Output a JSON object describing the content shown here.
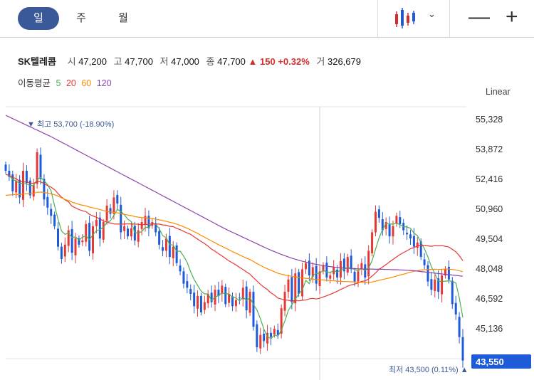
{
  "tabs": [
    "일",
    "주",
    "월"
  ],
  "window": {
    "minimize": "—",
    "add": "+"
  },
  "stock": {
    "name": "SK텔레콤",
    "open_label": "시",
    "open": "47,200",
    "high_label": "고",
    "high": "47,700",
    "low_label": "저",
    "low": "47,000",
    "close_label": "종",
    "close": "47,700",
    "change": "▲ 150",
    "change_pct": "+0.32%",
    "volume_label": "거",
    "volume": "326,679"
  },
  "ma_legend": {
    "label": "이동평균",
    "items": [
      "5",
      "20",
      "60",
      "120"
    ],
    "colors": [
      "#4caf50",
      "#e53935",
      "#fb8c00",
      "#8e44ad"
    ]
  },
  "scale_mode": "Linear",
  "chart_data": {
    "type": "candlestick",
    "yaxis_ticks": [
      "55,328",
      "53,872",
      "52,416",
      "50,960",
      "49,504",
      "48,048",
      "46,592",
      "45,136"
    ],
    "ylim": [
      43000,
      56000
    ],
    "annotations": {
      "high": {
        "text": "▼ 최고 53,700 (-18.90%)",
        "value": 53700
      },
      "low": {
        "text": "최저 43,500 (0.11%) ▲",
        "value": 43500
      },
      "last_price": {
        "text": "43,550",
        "value": 43550
      }
    },
    "closes": [
      52800,
      52500,
      51800,
      52300,
      51500,
      52800,
      52200,
      51600,
      52100,
      53700,
      52400,
      51400,
      51000,
      50600,
      50100,
      49100,
      48500,
      49200,
      49900,
      48800,
      49500,
      49200,
      49400,
      50200,
      48900,
      50100,
      50400,
      49500,
      50300,
      51100,
      50700,
      51500,
      51200,
      49800,
      50100,
      49600,
      50000,
      49400,
      49900,
      50300,
      50600,
      50000,
      50300,
      49800,
      49200,
      48900,
      49500,
      48600,
      49100,
      48300,
      47900,
      47300,
      47100,
      46800,
      46200,
      46700,
      45900,
      46400,
      46800,
      46400,
      47000,
      46700,
      47200,
      46300,
      46800,
      46200,
      46500,
      46600,
      47100,
      46000,
      46900,
      45200,
      44200,
      44800,
      44500,
      44900,
      44700,
      45100,
      44800,
      46100,
      46900,
      47500,
      46400,
      47800,
      46800,
      48000,
      48300,
      47700,
      48100,
      47300,
      47900,
      48200,
      47600,
      47700,
      48100,
      47600,
      48400,
      47900,
      48600,
      48000,
      47400,
      47900,
      48300,
      47600,
      48900,
      49800,
      50800,
      50500,
      49900,
      50300,
      49600,
      50100,
      50600,
      50200,
      49900,
      49700,
      49500,
      49100,
      49300,
      48600,
      48200,
      47400,
      47000,
      47500,
      46900,
      47700,
      48000,
      47500,
      46300,
      45800,
      44700,
      43550
    ],
    "series": [
      {
        "name": "5",
        "values": [
          52620,
          52560,
          52380,
          52300,
          52180,
          52180,
          52160,
          52080,
          52080,
          52360,
          52480,
          52320,
          52120,
          51820,
          51100,
          50440,
          49860,
          49700,
          49760,
          49540,
          49580,
          49420,
          49560,
          49640,
          49440,
          49680,
          49880,
          49940,
          50040,
          50280,
          50360,
          50620,
          50920,
          50820,
          50660,
          50440,
          50320,
          49780,
          49760,
          49840,
          50040,
          50040,
          50220,
          50200,
          49980,
          49640,
          49540,
          49200,
          49180,
          48880,
          48880,
          48640,
          48340,
          47880,
          47500,
          47220,
          46940,
          46800,
          46800,
          46480,
          46640,
          46720,
          46840,
          46800,
          46800,
          46640,
          46600,
          46460,
          46640,
          46480,
          46620,
          46280,
          46020,
          45580,
          45080,
          44720,
          44620,
          44800,
          44740,
          45040,
          45480,
          46000,
          46260,
          46540,
          46800,
          47000,
          47460,
          47300,
          47700,
          47800,
          47800,
          47960,
          47860,
          47840,
          47940,
          47860,
          47960,
          48000,
          48100,
          48040,
          48000,
          47920,
          48040,
          47940,
          48060,
          48420,
          48980,
          49520,
          49940,
          50240,
          50200,
          50200,
          50240,
          50180,
          50080,
          50060,
          50000,
          49760,
          49640,
          49300,
          49000,
          48600,
          48120,
          47780,
          47420,
          47400,
          47420,
          47440,
          47400,
          47340,
          46600,
          45650
        ]
      },
      {
        "name": "20",
        "values": [
          52620,
          52580,
          52470,
          52420,
          52270,
          52250,
          52260,
          52200,
          52180,
          52280,
          52260,
          52170,
          52080,
          52000,
          51880,
          51690,
          51510,
          51380,
          51290,
          51070,
          50990,
          50910,
          50850,
          50810,
          50680,
          50600,
          50530,
          50450,
          50350,
          50300,
          50250,
          50210,
          50200,
          50200,
          50200,
          50210,
          50210,
          50200,
          50190,
          50170,
          50180,
          50180,
          50220,
          50200,
          50200,
          50160,
          50150,
          50090,
          50080,
          49990,
          49930,
          49850,
          49770,
          49700,
          49580,
          49470,
          49360,
          49250,
          49130,
          48980,
          48880,
          48760,
          48650,
          48530,
          48410,
          48310,
          48210,
          48090,
          47990,
          47870,
          47760,
          47590,
          47430,
          47260,
          47130,
          47010,
          46850,
          46740,
          46600,
          46550,
          46500,
          46490,
          46450,
          46490,
          46460,
          46490,
          46500,
          46560,
          46580,
          46550,
          46590,
          46650,
          46710,
          46780,
          46850,
          46930,
          47020,
          47090,
          47180,
          47240,
          47280,
          47330,
          47410,
          47430,
          47530,
          47670,
          47820,
          48000,
          48110,
          48230,
          48360,
          48480,
          48600,
          48720,
          48810,
          48900,
          49000,
          49060,
          49140,
          49170,
          49160,
          49140,
          49120,
          49150,
          49140,
          49150,
          49120,
          49080,
          48970,
          48850,
          48660,
          48420
        ]
      },
      {
        "name": "60",
        "values": [
          51600,
          51620,
          51630,
          51650,
          51640,
          51670,
          51680,
          51690,
          51700,
          51750,
          51760,
          51740,
          51710,
          51680,
          51630,
          51560,
          51480,
          51400,
          51350,
          51270,
          51220,
          51160,
          51120,
          51090,
          51030,
          50990,
          50950,
          50910,
          50860,
          50820,
          50790,
          50770,
          50750,
          50710,
          50680,
          50640,
          50610,
          50570,
          50540,
          50520,
          50510,
          50490,
          50470,
          50440,
          50410,
          50370,
          50340,
          50290,
          50250,
          50200,
          50140,
          50070,
          50000,
          49920,
          49830,
          49750,
          49650,
          49560,
          49470,
          49380,
          49290,
          49200,
          49120,
          49030,
          48950,
          48860,
          48780,
          48700,
          48620,
          48540,
          48470,
          48380,
          48280,
          48190,
          48100,
          48020,
          47950,
          47880,
          47810,
          47760,
          47720,
          47690,
          47650,
          47630,
          47600,
          47580,
          47560,
          47540,
          47520,
          47500,
          47490,
          47480,
          47460,
          47450,
          47440,
          47420,
          47410,
          47400,
          47400,
          47390,
          47380,
          47370,
          47360,
          47350,
          47360,
          47380,
          47420,
          47460,
          47500,
          47540,
          47580,
          47620,
          47670,
          47720,
          47760,
          47810,
          47860,
          47900,
          47930,
          47960,
          47980,
          47990,
          47990,
          48000,
          47990,
          48000,
          48010,
          48010,
          47990,
          47970,
          47930,
          47880
        ]
      },
      {
        "name": "120",
        "values": [
          55500,
          55420,
          55340,
          55260,
          55180,
          55100,
          55020,
          54940,
          54860,
          54780,
          54700,
          54620,
          54540,
          54460,
          54370,
          54280,
          54190,
          54100,
          54010,
          53920,
          53830,
          53740,
          53650,
          53560,
          53470,
          53380,
          53290,
          53200,
          53110,
          53020,
          52930,
          52840,
          52750,
          52660,
          52570,
          52480,
          52390,
          52300,
          52210,
          52120,
          52030,
          51940,
          51850,
          51760,
          51670,
          51580,
          51490,
          51400,
          51310,
          51220,
          51130,
          51040,
          50950,
          50860,
          50770,
          50680,
          50590,
          50500,
          50410,
          50320,
          50230,
          50140,
          50050,
          49960,
          49880,
          49800,
          49720,
          49640,
          49560,
          49480,
          49400,
          49320,
          49240,
          49160,
          49080,
          49000,
          48930,
          48860,
          48790,
          48720,
          48660,
          48600,
          48540,
          48490,
          48440,
          48390,
          48350,
          48310,
          48270,
          48240,
          48210,
          48180,
          48150,
          48130,
          48110,
          48090,
          48070,
          48060,
          48050,
          48040,
          48030,
          48020,
          48020,
          48010,
          48010,
          48010,
          48000,
          48000,
          48000,
          47990,
          47990,
          47980,
          47980,
          47970,
          47960,
          47950,
          47940,
          47930,
          47910,
          47890,
          47870,
          47850,
          47830,
          47810,
          47790,
          47770,
          47750,
          47740,
          47720,
          47700,
          47680,
          47660
        ]
      }
    ]
  }
}
